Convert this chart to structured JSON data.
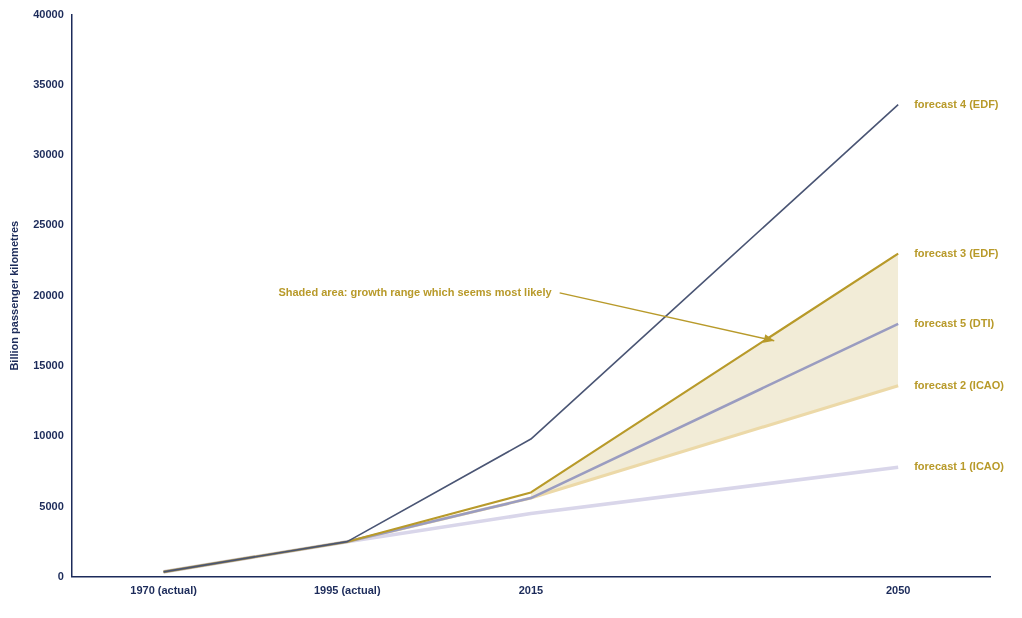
{
  "chart_data": {
    "type": "line",
    "ylabel": "Billion passenger kilometres",
    "categories": [
      "1970 (actual)",
      "1995 (actual)",
      "2015",
      null,
      "2050"
    ],
    "ylim": [
      0,
      40000
    ],
    "yticks": [
      0,
      5000,
      10000,
      15000,
      20000,
      25000,
      30000,
      35000,
      40000
    ],
    "grid": false,
    "legend": false,
    "marker": "none",
    "line_style": "solid",
    "series": [
      {
        "name": "forecast 4 (EDF)",
        "color": "#4a5574",
        "values": [
          350,
          2500,
          9800,
          null,
          33600
        ]
      },
      {
        "name": "forecast 3 (EDF)",
        "color": "#b89a2a",
        "values": [
          350,
          2500,
          6000,
          null,
          23000
        ],
        "lower": [
          null,
          null,
          5600,
          null,
          13600
        ],
        "upper": [
          null,
          null,
          6000,
          null,
          23000
        ]
      },
      {
        "name": "forecast 5 (DTI)",
        "color": "#9a9cc0",
        "values": [
          350,
          2500,
          5600,
          null,
          18000
        ]
      },
      {
        "name": "forecast 2 (ICAO)",
        "color": "#ecd9a8",
        "values": [
          350,
          2500,
          5600,
          null,
          13600
        ]
      },
      {
        "name": "forecast 1 (ICAO)",
        "color": "#d9d6ea",
        "values": [
          350,
          2500,
          4500,
          null,
          7800
        ]
      }
    ],
    "annotations": [
      "Shaded area: growth range which seems most likely"
    ]
  }
}
